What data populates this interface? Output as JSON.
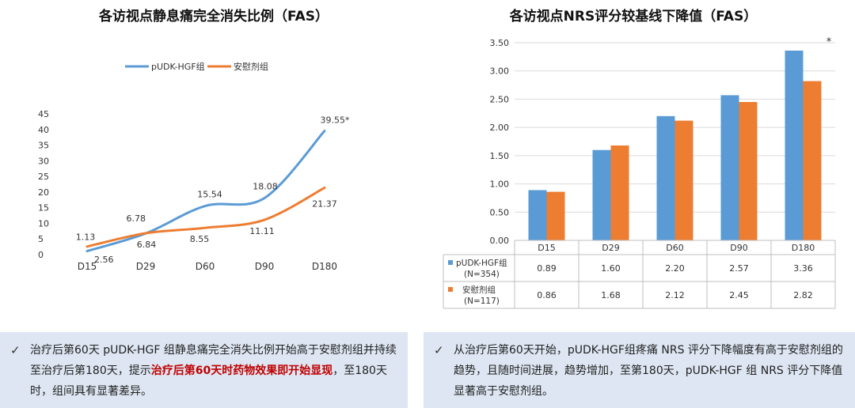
{
  "left": {
    "title": "各访视点静息痛完全消失比例（FAS）",
    "chart_data": {
      "type": "line",
      "categories": [
        "D15",
        "D29",
        "D60",
        "D90",
        "D180"
      ],
      "series": [
        {
          "name": "pUDK-HGF组",
          "values": [
            1.13,
            6.78,
            15.54,
            18.08,
            39.55
          ],
          "labels": [
            "1.13",
            "6.78",
            "15.54",
            "18.08",
            "39.55*"
          ],
          "color": "#5b9bd5"
        },
        {
          "name": "安慰剂组",
          "values": [
            2.56,
            6.84,
            8.55,
            11.11,
            21.37
          ],
          "labels": [
            "2.56",
            "6.84",
            "8.55",
            "11.11",
            "21.37"
          ],
          "color": "#ed7d31"
        }
      ],
      "yticks": [
        "0",
        "5",
        "10",
        "15",
        "20",
        "25",
        "30",
        "35",
        "40",
        "45"
      ],
      "ylim": [
        0,
        45
      ],
      "legend_position": "top",
      "grid": false
    }
  },
  "right": {
    "title": "各访视点NRS评分较基线下降值（FAS）",
    "chart_data": {
      "type": "bar",
      "categories": [
        "D15",
        "D29",
        "D60",
        "D90",
        "D180"
      ],
      "series": [
        {
          "name": "pUDK-HGF组",
          "n_label": "(N=354)",
          "values": [
            0.89,
            1.6,
            2.2,
            2.57,
            3.36
          ],
          "labels": [
            "0.89",
            "1.60",
            "2.20",
            "2.57",
            "3.36"
          ],
          "color": "#5b9bd5"
        },
        {
          "name": "安慰剂组",
          "n_label": "(N=117)",
          "values": [
            0.86,
            1.68,
            2.12,
            2.45,
            2.82
          ],
          "labels": [
            "0.86",
            "1.68",
            "2.12",
            "2.45",
            "2.82"
          ],
          "color": "#ed7d31"
        }
      ],
      "yticks": [
        "0.00",
        "0.50",
        "1.00",
        "1.50",
        "2.00",
        "2.50",
        "3.00",
        "3.50"
      ],
      "ylim": [
        0,
        3.5
      ],
      "annotation": "*",
      "grid": true,
      "data_table": true
    }
  },
  "notes": {
    "check_mark": "✓",
    "left": {
      "part1": "治疗后第60天 pUDK-HGF 组静息痛完全消失比例开始高于安慰剂组并持续至治疗后第180天，提示",
      "highlight": "治疗后第60天时药物效果即开始显现",
      "part2": "，至180天时，组间具有显著差异。"
    },
    "right": {
      "text": "从治疗后第60天开始，pUDK-HGF组疼痛 NRS 评分下降幅度有高于安慰剂组的趋势，且随时间进展，趋势增加，至第180天，pUDK-HGF 组 NRS 评分下降值显著高于安慰剂组。"
    }
  }
}
